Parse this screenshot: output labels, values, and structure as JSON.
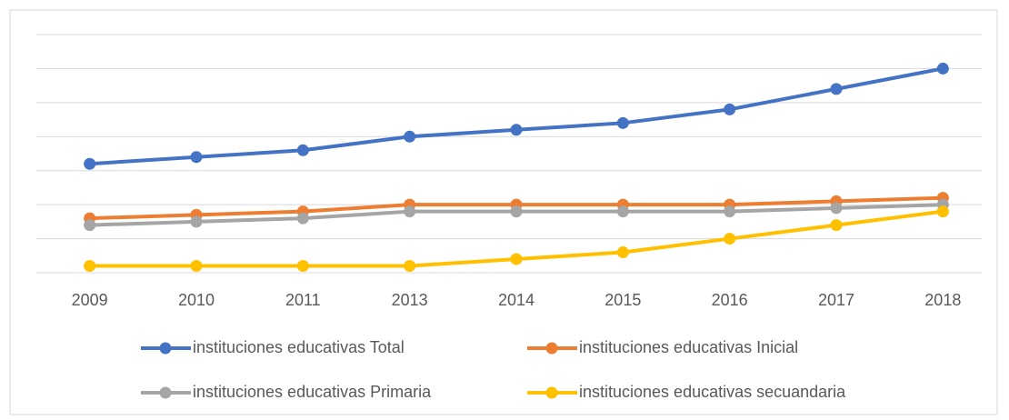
{
  "chart_data": {
    "type": "line",
    "categories": [
      "2009",
      "2010",
      "2011",
      "2013",
      "2014",
      "2015",
      "2016",
      "2017",
      "2018"
    ],
    "series": [
      {
        "name": "instituciones educativas Total",
        "color": "#4472c4",
        "values": [
          3.2,
          3.4,
          3.6,
          4.0,
          4.2,
          4.4,
          4.8,
          5.4,
          6.0
        ]
      },
      {
        "name": "instituciones educativas Inicial",
        "color": "#ed7d31",
        "values": [
          1.6,
          1.7,
          1.8,
          2.0,
          2.0,
          2.0,
          2.0,
          2.1,
          2.2
        ]
      },
      {
        "name": "instituciones educativas Primaria",
        "color": "#a5a5a5",
        "values": [
          1.4,
          1.5,
          1.6,
          1.8,
          1.8,
          1.8,
          1.8,
          1.9,
          2.0
        ]
      },
      {
        "name": "instituciones educativas secuandaria",
        "color": "#ffc000",
        "values": [
          0.2,
          0.2,
          0.2,
          0.2,
          0.4,
          0.6,
          1.0,
          1.4,
          1.8
        ]
      }
    ],
    "ylim": [
      0,
      7
    ],
    "yticks": [
      0,
      1,
      2,
      3,
      4,
      5,
      6,
      7
    ],
    "grid": true,
    "legend": "bottom"
  }
}
